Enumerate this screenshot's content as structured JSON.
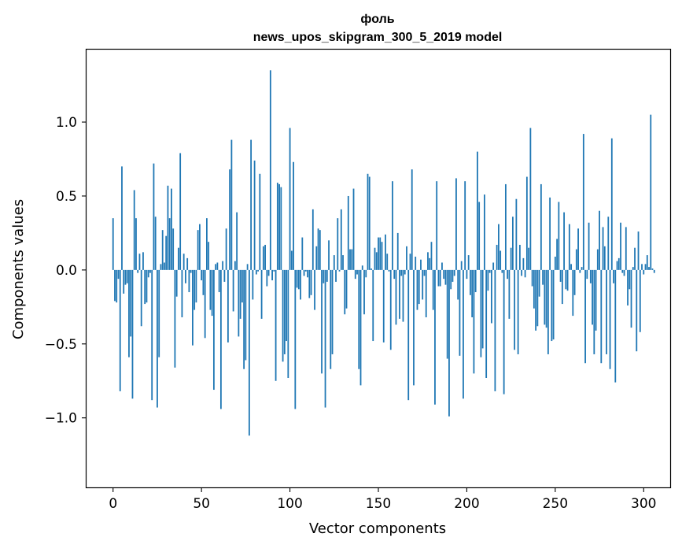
{
  "chart_data": {
    "type": "bar",
    "title": "фоль",
    "subtitle": "news_upos_skipgram_300_5_2019 model",
    "xlabel": "Vector components",
    "ylabel": "Components values",
    "xlim": [
      -15,
      315
    ],
    "ylim": [
      -1.47,
      1.49
    ],
    "xticks": [
      0,
      50,
      100,
      150,
      200,
      250,
      300
    ],
    "xtick_labels": [
      "0",
      "50",
      "100",
      "150",
      "200",
      "250",
      "300"
    ],
    "yticks": [
      -1.0,
      -0.5,
      0.0,
      0.5,
      1.0
    ],
    "ytick_labels": [
      "−1.0",
      "−0.5",
      "0.0",
      "0.5",
      "1.0"
    ],
    "grid": false,
    "color": "#1f77b4",
    "values": [
      0.35,
      -0.21,
      -0.22,
      -0.06,
      -0.82,
      0.7,
      -0.16,
      -0.1,
      -0.09,
      -0.59,
      -0.45,
      -0.87,
      0.54,
      0.35,
      -0.02,
      0.11,
      -0.38,
      0.12,
      -0.23,
      -0.22,
      -0.05,
      -0.02,
      -0.88,
      0.72,
      0.36,
      -0.93,
      -0.59,
      0.04,
      0.27,
      0.05,
      0.23,
      0.57,
      0.35,
      0.55,
      0.28,
      -0.66,
      -0.18,
      0.15,
      0.79,
      -0.32,
      0.11,
      -0.09,
      0.08,
      -0.15,
      -0.02,
      -0.51,
      -0.27,
      -0.22,
      0.27,
      0.31,
      -0.07,
      -0.17,
      -0.46,
      0.35,
      0.19,
      -0.27,
      -0.31,
      -0.81,
      0.04,
      0.05,
      -0.15,
      -0.94,
      0.06,
      -0.08,
      0.28,
      -0.49,
      0.68,
      0.88,
      -0.28,
      0.06,
      0.39,
      -0.45,
      -0.33,
      -0.22,
      -0.67,
      -0.61,
      0.04,
      -1.12,
      0.88,
      -0.2,
      0.74,
      -0.03,
      -0.01,
      0.65,
      -0.33,
      0.16,
      0.17,
      -0.11,
      -0.04,
      1.35,
      -0.07,
      -0.01,
      -0.75,
      0.59,
      0.58,
      0.56,
      -0.62,
      -0.57,
      -0.48,
      -0.73,
      0.96,
      0.13,
      0.73,
      -0.94,
      -0.12,
      -0.13,
      -0.2,
      0.22,
      -0.04,
      -0.01,
      -0.05,
      -0.19,
      -0.17,
      0.41,
      -0.27,
      0.16,
      0.28,
      0.27,
      -0.7,
      -0.09,
      -0.93,
      -0.08,
      0.2,
      -0.67,
      -0.57,
      0.1,
      -0.08,
      0.35,
      -0.01,
      0.41,
      0.1,
      -0.3,
      -0.26,
      0.5,
      0.14,
      0.14,
      0.55,
      -0.06,
      -0.03,
      -0.67,
      -0.78,
      0.03,
      -0.3,
      -0.05,
      0.65,
      0.63,
      0.01,
      -0.48,
      0.15,
      0.12,
      0.22,
      0.22,
      0.19,
      -0.49,
      0.24,
      0.11,
      -0.01,
      -0.54,
      0.6,
      -0.06,
      -0.37,
      0.25,
      -0.33,
      -0.04,
      -0.35,
      -0.03,
      0.16,
      -0.88,
      0.11,
      0.68,
      -0.78,
      0.09,
      -0.27,
      -0.23,
      0.07,
      -0.2,
      -0.04,
      -0.32,
      0.12,
      0.08,
      0.19,
      -0.27,
      -0.91,
      0.6,
      -0.11,
      -0.11,
      0.05,
      -0.06,
      -0.1,
      -0.6,
      -0.99,
      -0.13,
      -0.08,
      -0.04,
      0.62,
      -0.2,
      -0.58,
      0.06,
      -0.87,
      0.6,
      -0.06,
      0.1,
      -0.17,
      -0.32,
      -0.7,
      -0.15,
      0.8,
      0.46,
      -0.59,
      -0.53,
      0.51,
      -0.73,
      -0.14,
      -0.02,
      -0.36,
      0.05,
      -0.82,
      0.17,
      0.31,
      0.13,
      -0.02,
      -0.84,
      0.58,
      -0.06,
      -0.33,
      0.15,
      0.36,
      -0.54,
      0.48,
      -0.57,
      0.17,
      -0.04,
      0.08,
      -0.05,
      0.63,
      0.15,
      0.96,
      -0.11,
      -0.26,
      -0.41,
      -0.38,
      -0.18,
      0.58,
      -0.1,
      -0.37,
      -0.39,
      -0.57,
      0.49,
      -0.48,
      -0.47,
      0.09,
      0.21,
      0.46,
      -0.08,
      -0.23,
      0.39,
      -0.13,
      -0.14,
      0.31,
      0.04,
      -0.31,
      -0.17,
      0.14,
      0.28,
      -0.02,
      0.02,
      0.92,
      -0.63,
      -0.06,
      0.32,
      -0.09,
      -0.37,
      -0.57,
      -0.41,
      0.14,
      0.4,
      -0.63,
      0.29,
      0.16,
      -0.57,
      0.36,
      -0.67,
      0.89,
      -0.09,
      -0.76,
      0.06,
      0.08,
      0.32,
      -0.02,
      -0.04,
      0.29,
      -0.24,
      -0.13,
      -0.39,
      0.02,
      0.15,
      -0.55,
      0.26,
      -0.42,
      0.04,
      -0.03,
      0.04,
      0.1,
      0.02,
      1.05,
      0.01,
      -0.02
    ]
  }
}
